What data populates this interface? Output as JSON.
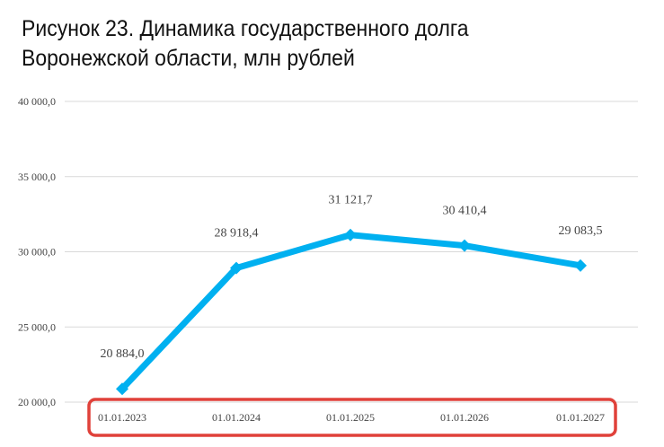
{
  "title_lines": [
    "Рисунок 23. Динамика государственного долга",
    "Воронежской области, млн рублей"
  ],
  "chart_data": {
    "type": "line",
    "title": "Рисунок 23. Динамика государственного долга Воронежской области, млн рублей",
    "xlabel": "",
    "ylabel": "",
    "categories": [
      "01.01.2023",
      "01.01.2024",
      "01.01.2025",
      "01.01.2026",
      "01.01.2027"
    ],
    "series": [
      {
        "values": [
          20884.0,
          28918.4,
          31121.7,
          30410.4,
          29083.5
        ],
        "labels": [
          "20 884,0",
          "28 918,4",
          "31 121,7",
          "30 410,4",
          "29 083,5"
        ],
        "color": "#00b0f0"
      }
    ],
    "ylim": [
      20000,
      40000
    ],
    "yticks": [
      20000,
      25000,
      30000,
      35000,
      40000
    ],
    "ytick_labels": [
      "20 000,0",
      "25 000,0",
      "30 000,0",
      "35 000,0",
      "40 000,0"
    ],
    "grid": true,
    "legend": "none",
    "highlight_box_color": "#e0413a"
  }
}
